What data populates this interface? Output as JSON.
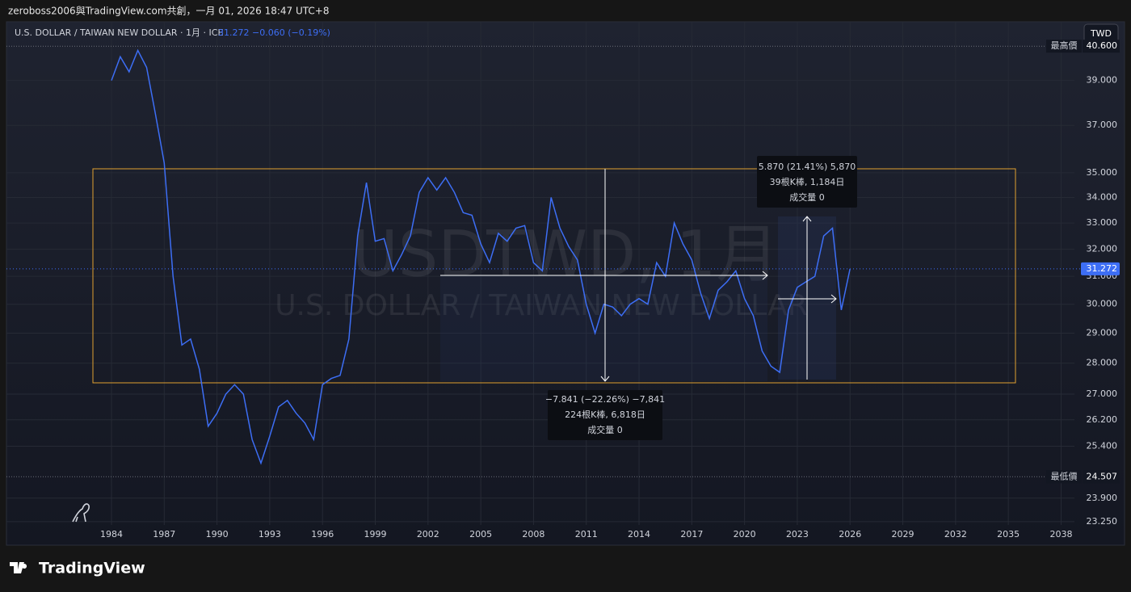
{
  "header": {
    "title": "zeroboss2006與TradingView.com共創，一月 01, 2026 18:47 UTC+8",
    "symbol": "U.S. DOLLAR / TAIWAN NEW DOLLAR · 1月 · ICE",
    "last": "31.272",
    "change": "−0.060 (−0.19%)",
    "currency": "TWD"
  },
  "watermark": {
    "symbol": "USDTWD, 1月",
    "description": "U.S. DOLLAR / TAIWAN NEW DOLLAR"
  },
  "measurements": [
    {
      "line1": "−7.841 (−22.26%) −7,841",
      "line2": "224根K棒, 6,818日",
      "line3": "成交量 0"
    },
    {
      "line1": "5.870 (21.41%) 5,870",
      "line2": "39根K棒, 1,184日",
      "line3": "成交量 0"
    }
  ],
  "footer": {
    "brand": "TradingView"
  },
  "chart_data": {
    "type": "line",
    "log_scale": true,
    "grid": true,
    "color": "#3d6ef5",
    "x": [
      1984,
      1984.5,
      1985,
      1985.5,
      1986,
      1986.5,
      1987,
      1987.5,
      1988,
      1988.5,
      1989,
      1989.5,
      1990,
      1990.5,
      1991,
      1991.5,
      1992,
      1992.5,
      1993,
      1993.5,
      1994,
      1994.5,
      1995,
      1995.5,
      1996,
      1996.5,
      1997,
      1997.5,
      1998,
      1998.5,
      1999,
      1999.5,
      2000,
      2000.5,
      2001,
      2001.5,
      2002,
      2002.5,
      2003,
      2003.5,
      2004,
      2004.5,
      2005,
      2005.5,
      2006,
      2006.5,
      2007,
      2007.5,
      2008,
      2008.5,
      2009,
      2009.5,
      2010,
      2010.5,
      2011,
      2011.5,
      2012,
      2012.5,
      2013,
      2013.5,
      2014,
      2014.5,
      2015,
      2015.5,
      2016,
      2016.5,
      2017,
      2017.5,
      2018,
      2018.5,
      2019,
      2019.5,
      2020,
      2020.5,
      2021,
      2021.5,
      2022,
      2022.5,
      2023,
      2023.5,
      2024,
      2024.5,
      2025,
      2025.5,
      2026
    ],
    "values": [
      39.0,
      40.1,
      39.4,
      40.4,
      39.6,
      37.5,
      35.4,
      31.0,
      28.6,
      28.8,
      27.8,
      26.0,
      26.4,
      27.0,
      27.3,
      27.0,
      25.6,
      24.9,
      25.7,
      26.6,
      26.8,
      26.4,
      26.1,
      25.6,
      27.3,
      27.5,
      27.6,
      28.8,
      32.5,
      34.6,
      32.3,
      32.4,
      31.2,
      31.8,
      32.5,
      34.2,
      34.8,
      34.3,
      34.8,
      34.2,
      33.4,
      33.3,
      32.2,
      31.5,
      32.6,
      32.3,
      32.8,
      32.9,
      31.5,
      31.2,
      34.0,
      32.8,
      32.1,
      31.6,
      30.0,
      29.0,
      30.0,
      29.9,
      29.6,
      30.0,
      30.2,
      30.0,
      31.5,
      31.0,
      33.0,
      32.2,
      31.6,
      30.4,
      29.5,
      30.5,
      30.8,
      31.2,
      30.2,
      29.6,
      28.4,
      27.9,
      27.7,
      29.8,
      30.6,
      30.8,
      31.0,
      32.5,
      32.8,
      29.8,
      31.272
    ],
    "xlim": [
      1978.12,
      2038.76
    ],
    "xticks": [
      1984,
      1987,
      1990,
      1993,
      1996,
      1999,
      2002,
      2005,
      2008,
      2011,
      2014,
      2017,
      2020,
      2023,
      2026,
      2029,
      2032,
      2035,
      2038
    ],
    "ylim": [
      23.16,
      40.8
    ],
    "yticks": [
      {
        "value": 23.25,
        "label": "23.250"
      },
      {
        "value": 23.9,
        "label": "23.900"
      },
      {
        "value": 25.4,
        "label": "25.400"
      },
      {
        "value": 26.2,
        "label": "26.200"
      },
      {
        "value": 27,
        "label": "27.000"
      },
      {
        "value": 28,
        "label": "28.000"
      },
      {
        "value": 29,
        "label": "29.000"
      },
      {
        "value": 30,
        "label": "30.000"
      },
      {
        "value": 31,
        "label": "31.000"
      },
      {
        "value": 32,
        "label": "32.000"
      },
      {
        "value": 33,
        "label": "33.000"
      },
      {
        "value": 34,
        "label": "34.000"
      },
      {
        "value": 35,
        "label": "35.000"
      },
      {
        "value": 37,
        "label": "37.000"
      },
      {
        "value": 39,
        "label": "39.000"
      }
    ],
    "price_markers": [
      {
        "name": "最高價",
        "value": 40.6,
        "label": "40.600"
      },
      {
        "name": "最低價",
        "value": 24.507,
        "label": "24.507"
      }
    ],
    "last_price": {
      "value": 31.272,
      "label": "31.272"
    }
  }
}
